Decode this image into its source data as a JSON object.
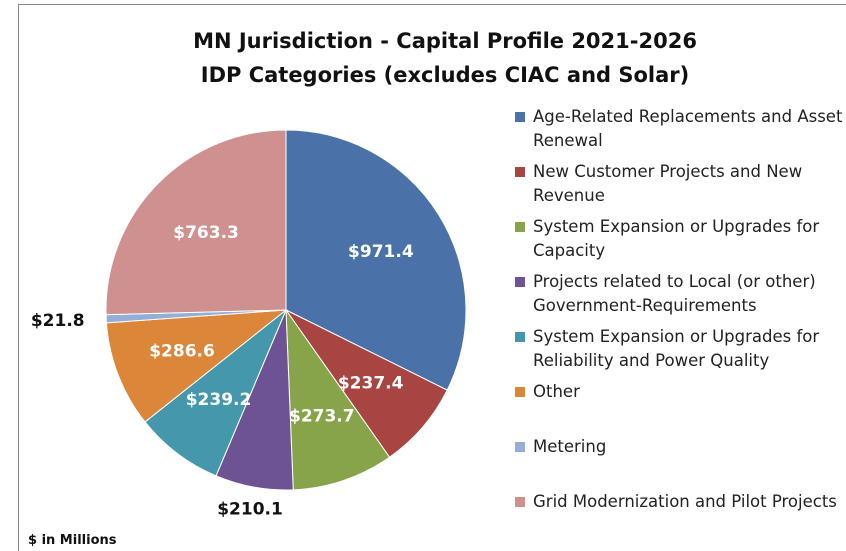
{
  "chart_data": {
    "type": "pie",
    "title": "MN Jurisdiction - Capital Profile 2021-2026",
    "subtitle": "IDP Categories (excludes CIAC and Solar)",
    "footnote": "$ in Millions",
    "categories": [
      "Age-Related Replacements and Asset Renewal",
      "New Customer Projects and New Revenue",
      "System Expansion or Upgrades for Capacity",
      "Projects related to Local (or other) Government-Requirements",
      "System Expansion or Upgrades for Reliability and Power Quality",
      "Other",
      "Metering",
      "Grid Modernization and Pilot Projects"
    ],
    "values": [
      971.4,
      237.4,
      273.7,
      210.1,
      239.2,
      286.6,
      21.8,
      763.3
    ],
    "value_labels": [
      "$971.4",
      "$237.4",
      "$273.7",
      "$210.1",
      "$239.2",
      "$286.6",
      "$21.8",
      "$763.3"
    ],
    "colors": [
      "#4a72a8",
      "#a84442",
      "#88a44a",
      "#6e5394",
      "#4598ab",
      "#db8638",
      "#94aed6",
      "#cf9190"
    ],
    "legend": "right"
  }
}
